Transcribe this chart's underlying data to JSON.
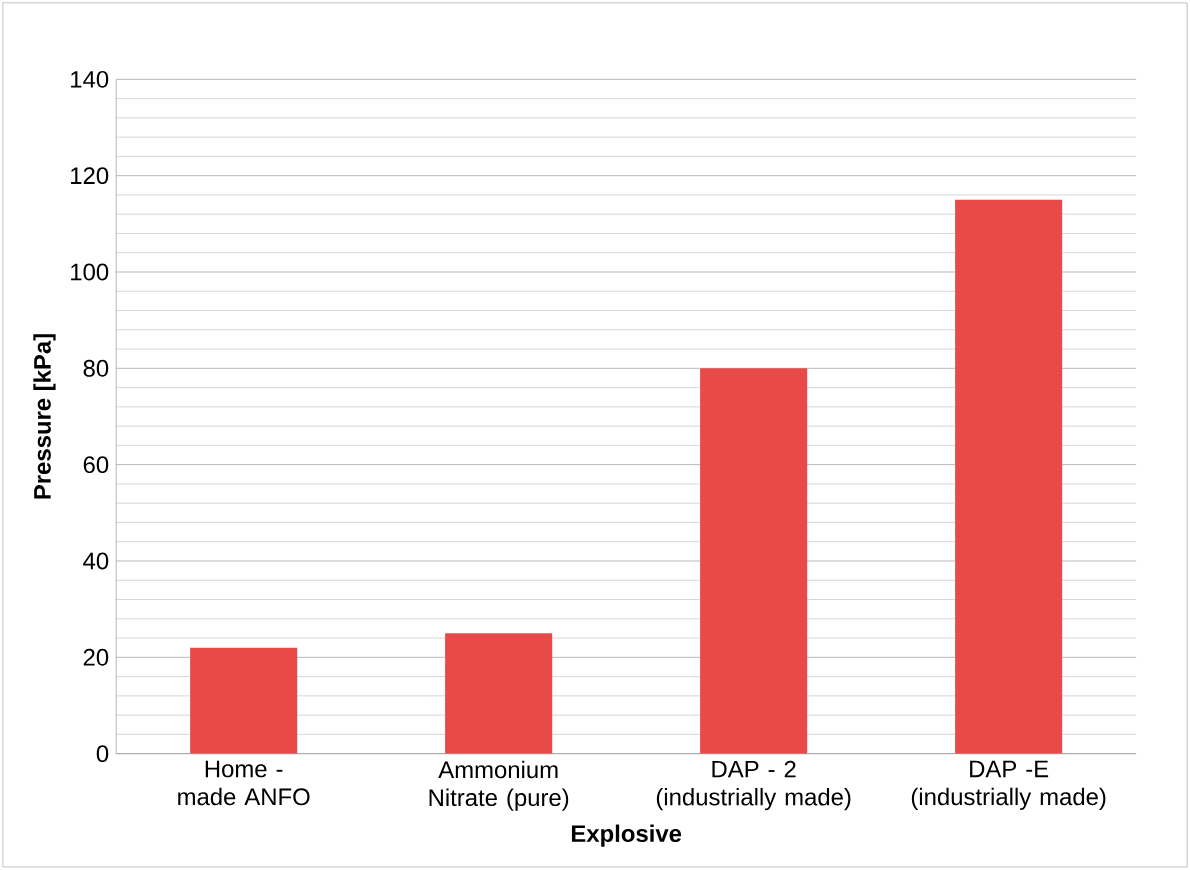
{
  "chart_data": {
    "type": "bar",
    "xlabel": "Explosive",
    "ylabel": "Pressure [kPa]",
    "categories": [
      "Home - made ANFO",
      "Ammonium Nitrate (pure)",
      "DAP - 2 (industrially made)",
      "DAP -E (industrially made)"
    ],
    "values": [
      22,
      25,
      80,
      115
    ],
    "color": "#e84a4a",
    "ylim": [
      0,
      140
    ],
    "yticks": [
      0,
      20,
      40,
      60,
      80,
      100,
      120,
      140
    ],
    "grid": "y"
  }
}
